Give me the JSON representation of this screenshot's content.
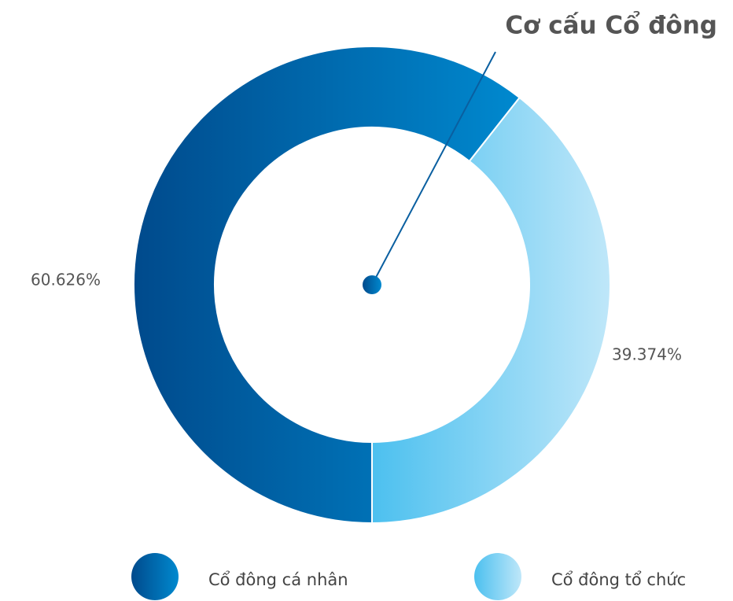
{
  "chart_data": {
    "type": "pie",
    "title": "Cơ cấu Cổ đông",
    "categories": [
      "Cổ đông cá nhân",
      "Cổ đông tổ chức"
    ],
    "values": [
      60.626,
      39.374
    ],
    "value_labels": [
      "60.626%",
      "39.374%"
    ],
    "colors": [
      [
        "#004a8c",
        "#0089cf"
      ],
      [
        "#4cc0ef",
        "#bfe7f9"
      ]
    ]
  }
}
